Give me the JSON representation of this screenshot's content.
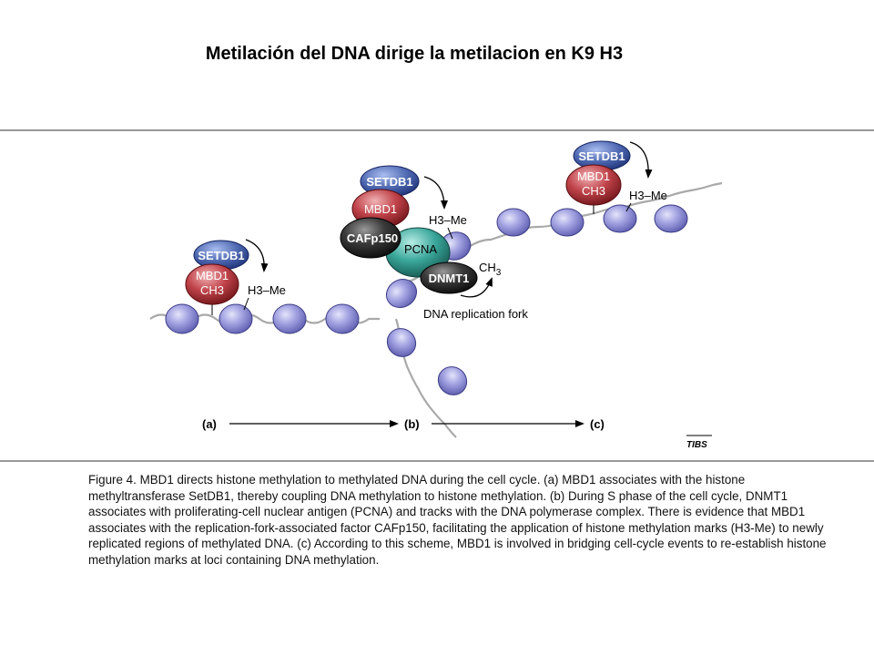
{
  "title": "Metilación del DNA dirige la metilacion en K9 H3",
  "labels": {
    "setdb1": "SETDB1",
    "mbd1": "MBD1",
    "ch3": "CH3",
    "h3me": "H3–Me",
    "cafp150": "CAFp150",
    "pcna": "PCNA",
    "dnmt1": "DNMT1",
    "ch3_sub_main": "CH",
    "ch3_sub_index": "3",
    "fork": "DNA replication fork",
    "a": "(a)",
    "b": "(b)",
    "c": "(c)",
    "credit": "TIBS"
  },
  "caption": "Figure 4. MBD1 directs histone methylation to methylated DNA during the cell cycle. (a) MBD1 associates with the histone methyltransferase SetDB1, thereby coupling DNA  methylation to histone methylation. (b) During S phase of the cell cycle, DNMT1 associates with proliferating-cell nuclear antigen (PCNA) and tracks with the DNA polymerase complex. There is evidence that MBD1 associates with the replication-fork-associated factor CAFp150, facilitating the application of histone methylation marks (H3-Me) to newly replicated regions of methylated DNA. (c) According to this scheme, MBD1 is involved in bridging cell-cycle events to re-establish histone methylation marks at loci containing DNA methylation.",
  "colors": {
    "setdb1": "#4a62a8",
    "mbd1": "#b8343b",
    "cafp150": "#1e1e1e",
    "pcna": "#2f9a90",
    "dnmt1": "#2a2a2a",
    "nucleosome": "#8f8fd6",
    "dna": "#a9a9a9"
  }
}
